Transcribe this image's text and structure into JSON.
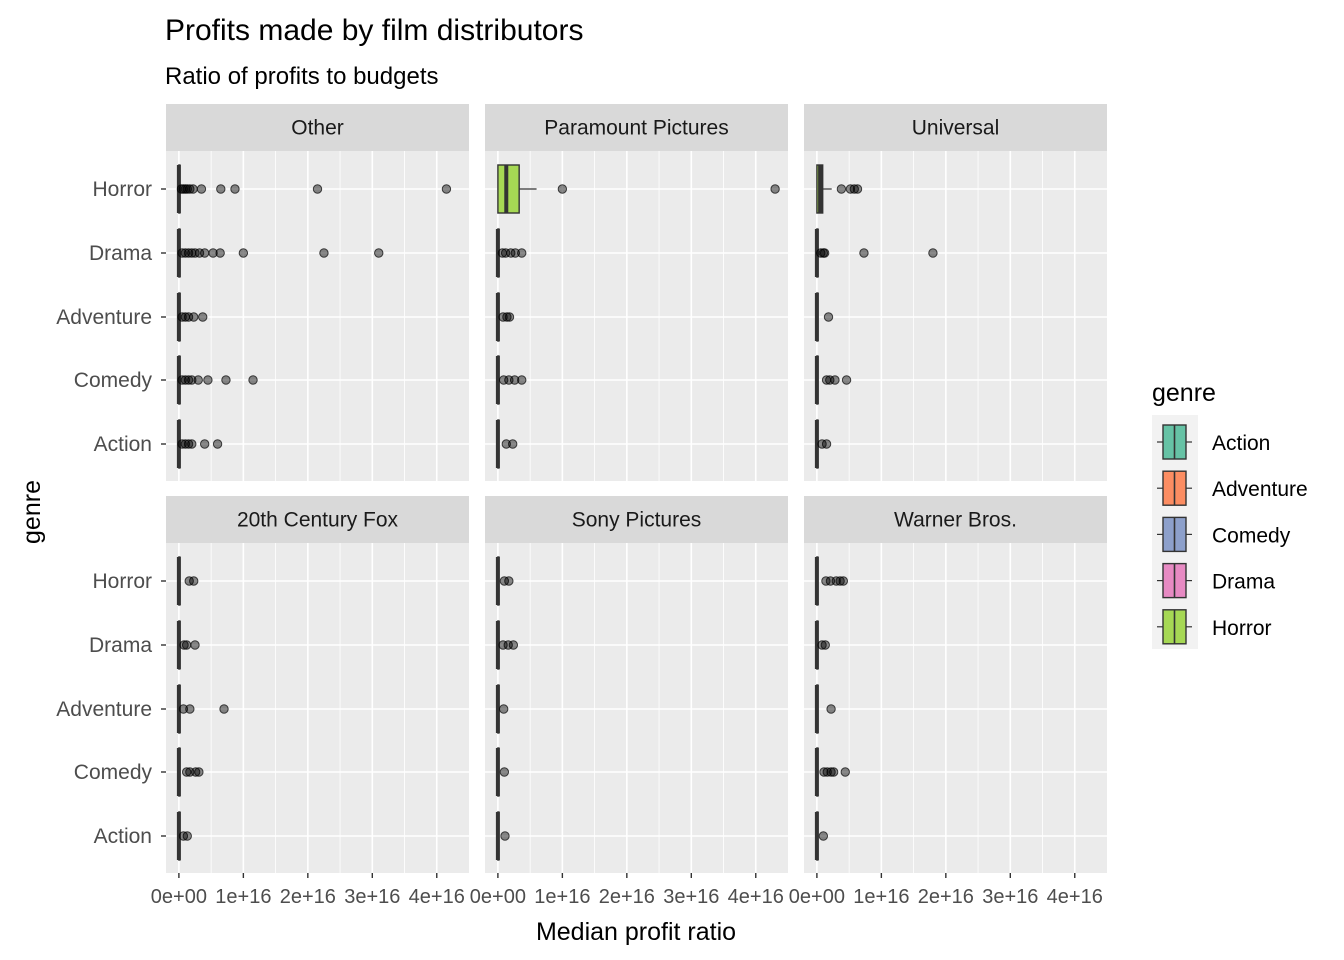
{
  "chart_data": {
    "type": "boxplot",
    "title": "Profits made by film distributors",
    "subtitle": "Ratio of profits to budgets",
    "xlabel": "Median profit ratio",
    "ylabel": "genre",
    "xlim": [
      -2000000000000000.0,
      4.5e+16
    ],
    "x_ticks": [
      0,
      1e+16,
      2e+16,
      3e+16,
      4e+16
    ],
    "x_tick_labels": [
      "0e+00",
      "1e+16",
      "2e+16",
      "3e+16",
      "4e+16"
    ],
    "categories": [
      "Horror",
      "Drama",
      "Adventure",
      "Comedy",
      "Action"
    ],
    "grid": true,
    "legend": {
      "title": "genre",
      "position": "right",
      "items": [
        {
          "name": "Action",
          "color": "#66C2A5"
        },
        {
          "name": "Adventure",
          "color": "#FC8D62"
        },
        {
          "name": "Comedy",
          "color": "#8DA0CB"
        },
        {
          "name": "Drama",
          "color": "#E78AC3"
        },
        {
          "name": "Horror",
          "color": "#A6D854"
        }
      ]
    },
    "panels": [
      {
        "name": "Other",
        "series": [
          {
            "genre": "Horror",
            "q1": 0,
            "median": 0,
            "q3": 100000000000000.0,
            "whisker_high": 200000000000000.0,
            "outliers": [
              400000000000000.0,
              700000000000000.0,
              1000000000000000.0,
              1300000000000000.0,
              1700000000000000.0,
              2200000000000000.0,
              3500000000000000.0,
              6500000000000000.0,
              8700000000000000.0,
              2.15e+16,
              4.15e+16
            ]
          },
          {
            "genre": "Drama",
            "q1": 0,
            "median": 0,
            "q3": 100000000000000.0,
            "whisker_high": 200000000000000.0,
            "outliers": [
              500000000000000.0,
              1000000000000000.0,
              1500000000000000.0,
              2000000000000000.0,
              2500000000000000.0,
              3200000000000000.0,
              4000000000000000.0,
              5300000000000000.0,
              6400000000000000.0,
              1e+16,
              2.25e+16,
              3.1e+16
            ]
          },
          {
            "genre": "Adventure",
            "q1": 0,
            "median": 0,
            "q3": 100000000000000.0,
            "whisker_high": 200000000000000.0,
            "outliers": [
              500000000000000.0,
              1000000000000000.0,
              1500000000000000.0,
              2300000000000000.0,
              3700000000000000.0
            ]
          },
          {
            "genre": "Comedy",
            "q1": 0,
            "median": 0,
            "q3": 100000000000000.0,
            "whisker_high": 200000000000000.0,
            "outliers": [
              500000000000000.0,
              1000000000000000.0,
              1500000000000000.0,
              2000000000000000.0,
              3000000000000000.0,
              4500000000000000.0,
              7300000000000000.0,
              1.15e+16
            ]
          },
          {
            "genre": "Action",
            "q1": 0,
            "median": 0,
            "q3": 100000000000000.0,
            "whisker_high": 200000000000000.0,
            "outliers": [
              500000000000000.0,
              1000000000000000.0,
              1500000000000000.0,
              2000000000000000.0,
              4000000000000000.0,
              6000000000000000.0
            ]
          }
        ]
      },
      {
        "name": "Paramount Pictures",
        "series": [
          {
            "genre": "Horror",
            "q1": 0,
            "median": 1300000000000000.0,
            "q3": 3300000000000000.0,
            "whisker_high": 6000000000000000.0,
            "outliers": [
              1e+16,
              4.3e+16
            ]
          },
          {
            "genre": "Drama",
            "q1": 0,
            "median": 0,
            "q3": 100000000000000.0,
            "whisker_high": 200000000000000.0,
            "outliers": [
              700000000000000.0,
              1200000000000000.0,
              2000000000000000.0,
              2700000000000000.0,
              3700000000000000.0
            ]
          },
          {
            "genre": "Adventure",
            "q1": 0,
            "median": 0,
            "q3": 100000000000000.0,
            "whisker_high": 200000000000000.0,
            "outliers": [
              800000000000000.0,
              1400000000000000.0,
              1800000000000000.0
            ]
          },
          {
            "genre": "Comedy",
            "q1": 0,
            "median": 0,
            "q3": 100000000000000.0,
            "whisker_high": 200000000000000.0,
            "outliers": [
              900000000000000.0,
              1700000000000000.0,
              2600000000000000.0,
              3700000000000000.0
            ]
          },
          {
            "genre": "Action",
            "q1": 0,
            "median": 0,
            "q3": 100000000000000.0,
            "whisker_high": 200000000000000.0,
            "outliers": [
              1300000000000000.0,
              2300000000000000.0
            ]
          }
        ]
      },
      {
        "name": "Universal",
        "series": [
          {
            "genre": "Horror",
            "q1": 0,
            "median": 500000000000000.0,
            "q3": 900000000000000.0,
            "whisker_high": 2300000000000000.0,
            "outliers": [
              3800000000000000.0,
              5200000000000000.0,
              5800000000000000.0,
              6300000000000000.0
            ]
          },
          {
            "genre": "Drama",
            "q1": 0,
            "median": 0,
            "q3": 100000000000000.0,
            "whisker_high": 200000000000000.0,
            "outliers": [
              600000000000000.0,
              1000000000000000.0,
              1200000000000000.0,
              7300000000000000.0,
              1.8e+16
            ]
          },
          {
            "genre": "Adventure",
            "q1": 0,
            "median": 0,
            "q3": 100000000000000.0,
            "whisker_high": 200000000000000.0,
            "outliers": [
              1800000000000000.0
            ]
          },
          {
            "genre": "Comedy",
            "q1": 0,
            "median": 0,
            "q3": 100000000000000.0,
            "whisker_high": 200000000000000.0,
            "outliers": [
              1500000000000000.0,
              2000000000000000.0,
              2800000000000000.0,
              4600000000000000.0
            ]
          },
          {
            "genre": "Action",
            "q1": 0,
            "median": 0,
            "q3": 100000000000000.0,
            "whisker_high": 200000000000000.0,
            "outliers": [
              800000000000000.0,
              1500000000000000.0
            ]
          }
        ]
      },
      {
        "name": "20th Century Fox",
        "series": [
          {
            "genre": "Horror",
            "q1": 0,
            "median": 0,
            "q3": 100000000000000.0,
            "whisker_high": 200000000000000.0,
            "outliers": [
              1600000000000000.0,
              2300000000000000.0
            ]
          },
          {
            "genre": "Drama",
            "q1": 0,
            "median": 0,
            "q3": 100000000000000.0,
            "whisker_high": 200000000000000.0,
            "outliers": [
              800000000000000.0,
              1200000000000000.0,
              2500000000000000.0
            ]
          },
          {
            "genre": "Adventure",
            "q1": 0,
            "median": 0,
            "q3": 100000000000000.0,
            "whisker_high": 200000000000000.0,
            "outliers": [
              700000000000000.0,
              1700000000000000.0,
              7000000000000000.0
            ]
          },
          {
            "genre": "Comedy",
            "q1": 0,
            "median": 0,
            "q3": 100000000000000.0,
            "whisker_high": 200000000000000.0,
            "outliers": [
              1200000000000000.0,
              1700000000000000.0,
              2600000000000000.0,
              3100000000000000.0
            ]
          },
          {
            "genre": "Action",
            "q1": 0,
            "median": 0,
            "q3": 100000000000000.0,
            "whisker_high": 200000000000000.0,
            "outliers": [
              700000000000000.0,
              1300000000000000.0
            ]
          }
        ]
      },
      {
        "name": "Sony Pictures",
        "series": [
          {
            "genre": "Horror",
            "q1": 0,
            "median": 0,
            "q3": 100000000000000.0,
            "whisker_high": 200000000000000.0,
            "outliers": [
              1000000000000000.0,
              1700000000000000.0
            ]
          },
          {
            "genre": "Drama",
            "q1": 0,
            "median": 0,
            "q3": 100000000000000.0,
            "whisker_high": 200000000000000.0,
            "outliers": [
              800000000000000.0,
              1600000000000000.0,
              2400000000000000.0
            ]
          },
          {
            "genre": "Adventure",
            "q1": 0,
            "median": 0,
            "q3": 100000000000000.0,
            "whisker_high": 200000000000000.0,
            "outliers": [
              900000000000000.0
            ]
          },
          {
            "genre": "Comedy",
            "q1": 0,
            "median": 0,
            "q3": 100000000000000.0,
            "whisker_high": 200000000000000.0,
            "outliers": [
              1000000000000000.0
            ]
          },
          {
            "genre": "Action",
            "q1": 0,
            "median": 0,
            "q3": 100000000000000.0,
            "whisker_high": 200000000000000.0,
            "outliers": [
              1100000000000000.0
            ]
          }
        ]
      },
      {
        "name": "Warner Bros.",
        "series": [
          {
            "genre": "Horror",
            "q1": 0,
            "median": 0,
            "q3": 100000000000000.0,
            "whisker_high": 200000000000000.0,
            "outliers": [
              1400000000000000.0,
              2100000000000000.0,
              3000000000000000.0,
              3600000000000000.0,
              4100000000000000.0
            ]
          },
          {
            "genre": "Drama",
            "q1": 0,
            "median": 0,
            "q3": 100000000000000.0,
            "whisker_high": 200000000000000.0,
            "outliers": [
              800000000000000.0,
              1300000000000000.0
            ]
          },
          {
            "genre": "Adventure",
            "q1": 0,
            "median": 0,
            "q3": 100000000000000.0,
            "whisker_high": 200000000000000.0,
            "outliers": [
              2200000000000000.0
            ]
          },
          {
            "genre": "Comedy",
            "q1": 0,
            "median": 0,
            "q3": 100000000000000.0,
            "whisker_high": 200000000000000.0,
            "outliers": [
              1100000000000000.0,
              1600000000000000.0,
              2200000000000000.0,
              2600000000000000.0,
              4400000000000000.0
            ]
          },
          {
            "genre": "Action",
            "q1": 0,
            "median": 0,
            "q3": 100000000000000.0,
            "whisker_high": 200000000000000.0,
            "outliers": [
              1000000000000000.0
            ]
          }
        ]
      }
    ]
  }
}
